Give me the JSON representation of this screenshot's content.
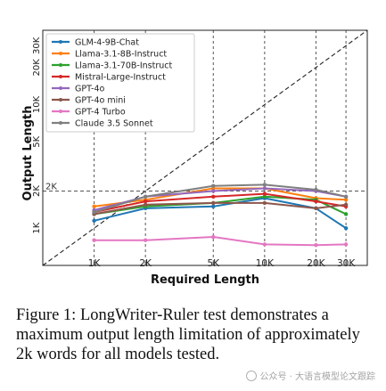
{
  "chart_data": {
    "type": "line",
    "xlabel": "Required Length",
    "ylabel": "Output Length",
    "x": [
      1000,
      2000,
      5000,
      10000,
      20000,
      30000
    ],
    "x_tick_labels": [
      "1K",
      "2K",
      "5K",
      "10K",
      "20K",
      "30K"
    ],
    "x_scale": "log",
    "xlim": [
      500,
      40000
    ],
    "ylim": [
      500,
      40000
    ],
    "y_scale": "log",
    "y_tick_labels": [
      "1K",
      "2K",
      "5K",
      "10K",
      "20K",
      "30K"
    ],
    "reference_line_label": "2K",
    "reference_line_value": 2000,
    "diagonal_reference": "y = x",
    "legend_position": "top-left",
    "series": [
      {
        "name": "GLM-4-9B-Chat",
        "color": "#1f77b4",
        "values": [
          1150,
          1450,
          1500,
          1750,
          1450,
          1000
        ]
      },
      {
        "name": "Llama-3.1-8B-Instruct",
        "color": "#ff7f0e",
        "values": [
          1500,
          1700,
          2100,
          2100,
          1750,
          1700
        ]
      },
      {
        "name": "Llama-3.1-70B-Instruct",
        "color": "#2ca02c",
        "values": [
          1300,
          1500,
          1600,
          1800,
          1700,
          1300
        ]
      },
      {
        "name": "Mistral-Large-Instruct",
        "color": "#d62728",
        "values": [
          1350,
          1650,
          1800,
          1900,
          1650,
          1500
        ]
      },
      {
        "name": "GPT-4o",
        "color": "#9467bd",
        "values": [
          1400,
          1800,
          2000,
          2100,
          2000,
          1800
        ]
      },
      {
        "name": "GPT-4o mini",
        "color": "#8c564b",
        "values": [
          1300,
          1550,
          1600,
          1600,
          1450,
          1550
        ]
      },
      {
        "name": "GPT-4 Turbo",
        "color": "#e377c2",
        "values": [
          800,
          800,
          850,
          740,
          730,
          740
        ]
      },
      {
        "name": "Claude 3.5 Sonnet",
        "color": "#7f7f7f",
        "values": [
          1350,
          1800,
          2200,
          2250,
          2050,
          1800
        ]
      }
    ]
  },
  "caption": "Figure 1: LongWriter-Ruler test demonstrates a maximum output length limitation of approximately 2k words for all models tested.",
  "watermark": "公众号 · 大语言模型论文跟踪"
}
